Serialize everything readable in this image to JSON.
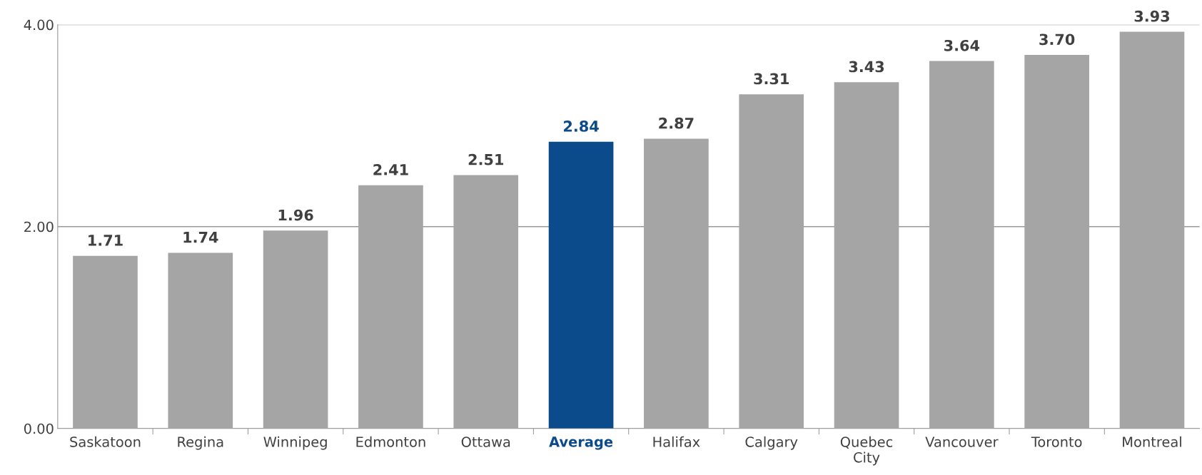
{
  "chart_data": {
    "type": "bar",
    "categories": [
      "Saskatoon",
      "Regina",
      "Winnipeg",
      "Edmonton",
      "Ottawa",
      "Average",
      "Halifax",
      "Calgary",
      "Quebec City",
      "Vancouver",
      "Toronto",
      "Montreal"
    ],
    "values": [
      1.71,
      1.74,
      1.96,
      2.41,
      2.51,
      2.84,
      2.87,
      3.31,
      3.43,
      3.64,
      3.7,
      3.93
    ],
    "colors": [
      "#a5a5a5",
      "#a5a5a5",
      "#a5a5a5",
      "#a5a5a5",
      "#a5a5a5",
      "#0b4a8b",
      "#a5a5a5",
      "#a5a5a5",
      "#a5a5a5",
      "#a5a5a5",
      "#a5a5a5",
      "#a5a5a5"
    ],
    "ylim": [
      0,
      4
    ],
    "yticks": [
      {
        "value": 0,
        "label": "0.00"
      },
      {
        "value": 2,
        "label": "2.00"
      },
      {
        "value": 4,
        "label": "4.00"
      }
    ],
    "value_labels": [
      "1.71",
      "1.74",
      "1.96",
      "2.41",
      "2.51",
      "2.84",
      "2.87",
      "3.31",
      "3.43",
      "3.64",
      "3.70",
      "3.93"
    ],
    "grid": "y"
  }
}
